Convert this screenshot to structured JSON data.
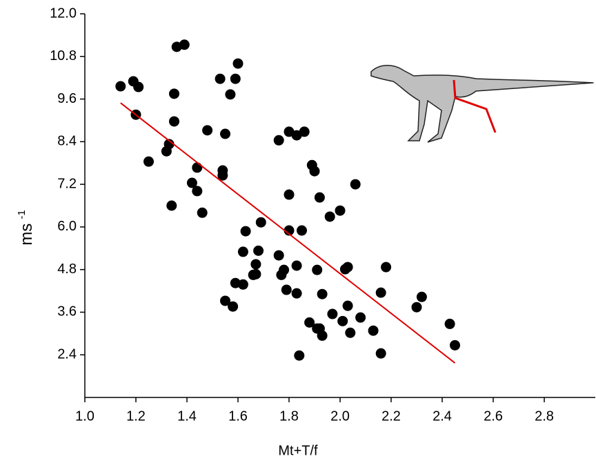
{
  "chart_data": {
    "type": "scatter",
    "xlabel": "Mt+T/f",
    "ylabel": "ms",
    "ylabel_exponent": "-1",
    "xlim": [
      1.0,
      3.0
    ],
    "xticks": [
      {
        "value": 1.0,
        "label": "1.0"
      },
      1.2,
      1.4,
      1.6,
      1.8,
      {
        "value": 2.0,
        "label": "2.0"
      },
      2.2,
      2.4,
      2.6,
      2.8
    ],
    "ylim": [
      1.2,
      12.0
    ],
    "yticks": [
      2.4,
      3.6,
      4.8,
      {
        "value": 6.0,
        "label": "6.0"
      },
      7.2,
      8.4,
      9.6,
      10.8,
      {
        "value": 12.0,
        "label": "12.0"
      }
    ],
    "grid": false,
    "series": [
      {
        "color": "#000000",
        "x": [
          1.14,
          1.19,
          1.21,
          1.2,
          1.25,
          1.32,
          1.33,
          1.35,
          1.35,
          1.36,
          1.39,
          1.34,
          1.42,
          1.44,
          1.44,
          1.46,
          1.48,
          1.53,
          1.59,
          1.6,
          1.57,
          1.55,
          1.54,
          1.54,
          1.63,
          1.62,
          1.69,
          1.68,
          1.67,
          1.67,
          1.66,
          1.59,
          1.62,
          1.55,
          1.58,
          1.76,
          1.8,
          1.83,
          1.86,
          1.89,
          1.9,
          1.8,
          1.8,
          1.85,
          1.92,
          1.76,
          1.78,
          1.77,
          1.83,
          1.91,
          1.79,
          1.83,
          1.93,
          1.88,
          1.91,
          1.92,
          1.93,
          1.84,
          1.96,
          2.0,
          2.06,
          2.02,
          2.03,
          1.97,
          2.01,
          2.03,
          2.04,
          2.08,
          2.13,
          2.18,
          2.16,
          2.16,
          2.3,
          2.32,
          2.43,
          2.45
        ],
        "values": [
          9.96,
          10.1,
          9.94,
          9.16,
          7.84,
          8.13,
          8.33,
          9.75,
          8.97,
          11.07,
          11.13,
          6.6,
          7.24,
          7.67,
          7.01,
          6.4,
          8.72,
          10.17,
          10.17,
          10.6,
          9.73,
          8.62,
          7.59,
          7.45,
          5.88,
          5.3,
          6.13,
          5.33,
          4.95,
          4.67,
          4.65,
          4.42,
          4.38,
          3.92,
          3.76,
          8.44,
          8.68,
          8.58,
          8.68,
          7.74,
          7.57,
          6.91,
          5.9,
          5.9,
          6.83,
          5.2,
          4.79,
          4.65,
          4.91,
          4.79,
          4.23,
          4.13,
          4.11,
          3.31,
          3.14,
          3.14,
          2.94,
          2.38,
          6.29,
          6.46,
          7.2,
          4.81,
          4.87,
          3.55,
          3.35,
          3.78,
          3.02,
          3.45,
          3.08,
          4.87,
          4.15,
          2.44,
          3.74,
          4.03,
          3.27,
          2.67
        ]
      }
    ],
    "fit": {
      "color": "#e00000",
      "x": [
        1.14,
        2.45
      ],
      "values": [
        9.49,
        2.17
      ]
    }
  }
}
